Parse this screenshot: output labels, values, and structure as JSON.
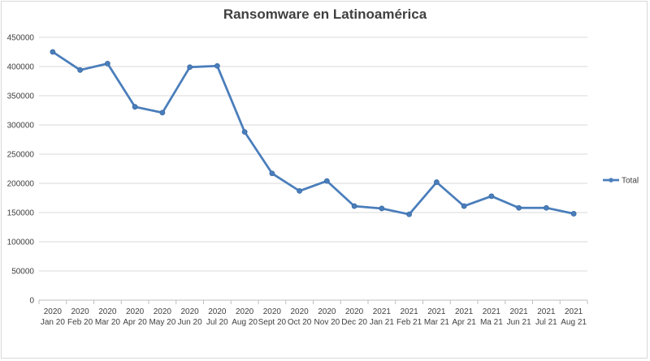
{
  "chart_data": {
    "type": "line",
    "title": "Ransomware  en Latinoamérica",
    "xlabel": "",
    "ylabel": "",
    "ylim": [
      0,
      450000
    ],
    "y_ticks": [
      "0",
      "50000",
      "100000",
      "150000",
      "200000",
      "250000",
      "300000",
      "350000",
      "400000",
      "450000"
    ],
    "categories": [
      [
        "2020",
        "Jan 20"
      ],
      [
        "2020",
        "Feb 20"
      ],
      [
        "2020",
        "Mar 20"
      ],
      [
        "2020",
        "Apr 20"
      ],
      [
        "2020",
        "May 20"
      ],
      [
        "2020",
        "Jun 20"
      ],
      [
        "2020",
        "Jul 20"
      ],
      [
        "2020",
        "Aug 20"
      ],
      [
        "2020",
        "Sept 20"
      ],
      [
        "2020",
        "Oct 20"
      ],
      [
        "2020",
        "Nov 20"
      ],
      [
        "2020",
        "Dec 20"
      ],
      [
        "2021",
        "Jan 21"
      ],
      [
        "2021",
        "Feb 21"
      ],
      [
        "2021",
        "Mar 21"
      ],
      [
        "2021",
        "Apr 21"
      ],
      [
        "2021",
        "Ma 21"
      ],
      [
        "2021",
        "Jun 21"
      ],
      [
        "2021",
        "Jul 21"
      ],
      [
        "2021",
        "Aug 21"
      ]
    ],
    "series": [
      {
        "name": "Total",
        "color": "#4a7ebb",
        "values": [
          425000,
          394000,
          405000,
          331000,
          321000,
          399000,
          401000,
          288000,
          217000,
          187000,
          204000,
          161000,
          157000,
          147000,
          202000,
          161000,
          178000,
          158000,
          158000,
          148000
        ]
      }
    ],
    "grid": true,
    "legend_position": "right"
  }
}
